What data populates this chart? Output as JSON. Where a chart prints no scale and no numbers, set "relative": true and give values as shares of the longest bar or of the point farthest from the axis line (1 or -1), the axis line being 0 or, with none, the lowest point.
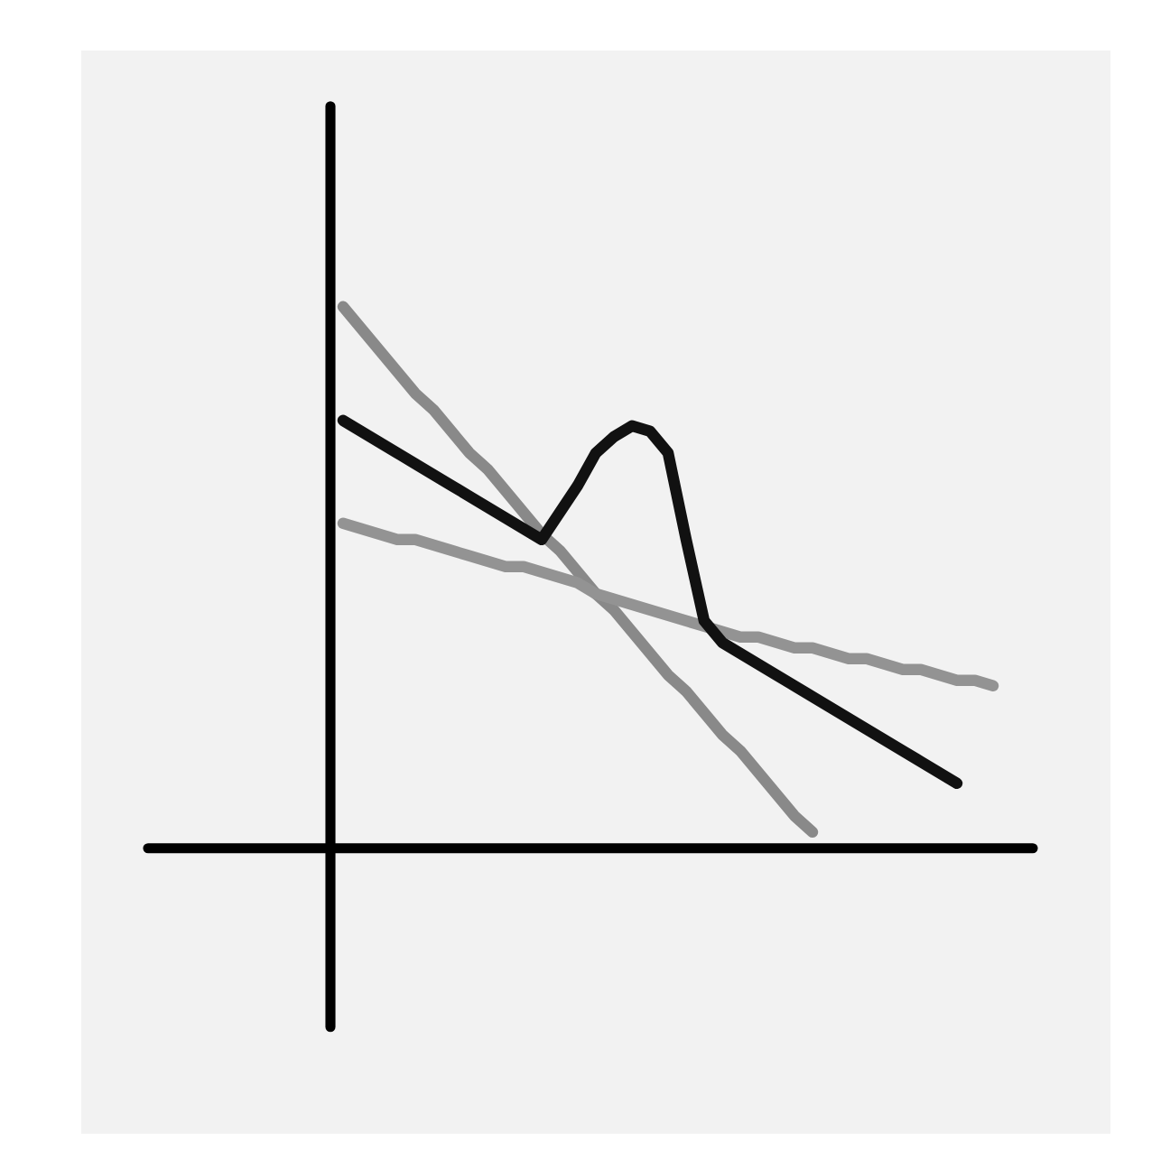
{
  "chart_data": {
    "type": "line",
    "relative": true,
    "categories": [
      null,
      null,
      null,
      null,
      null,
      null,
      null,
      null,
      null,
      null,
      null,
      null,
      null,
      null,
      null,
      null,
      null,
      null,
      null,
      null,
      null,
      null,
      null,
      null,
      null,
      null,
      null,
      null,
      null,
      null,
      null,
      null,
      null,
      null,
      null,
      null,
      null
    ],
    "series": [
      {
        "color": "#898989",
        "values": [
          1,
          0.96,
          0.92,
          0.88,
          0.84,
          0.81,
          0.77,
          0.73,
          0.7,
          0.66,
          0.62,
          0.58,
          0.55,
          0.51,
          0.47,
          0.44,
          0.4,
          0.36,
          0.32,
          0.29,
          0.25,
          0.21,
          0.18,
          0.14,
          0.1,
          0.06,
          0.03,
          null,
          null,
          null,
          null,
          null,
          null,
          null,
          null,
          null,
          null
        ]
      },
      {
        "color": "#939393",
        "values": [
          0.6,
          0.59,
          0.58,
          0.57,
          0.57,
          0.56,
          0.55,
          0.54,
          0.53,
          0.52,
          0.52,
          0.51,
          0.5,
          0.49,
          0.47,
          0.46,
          0.45,
          0.44,
          0.43,
          0.42,
          0.41,
          0.4,
          0.39,
          0.39,
          0.38,
          0.37,
          0.37,
          0.36,
          0.35,
          0.35,
          0.34,
          0.33,
          0.33,
          0.32,
          0.31,
          0.31,
          0.3
        ]
      },
      {
        "color": "#111111",
        "values": [
          0.79,
          0.77,
          0.75,
          0.73,
          0.71,
          0.69,
          0.67,
          0.65,
          0.63,
          0.61,
          0.59,
          0.57,
          0.62,
          0.67,
          0.73,
          0.76,
          0.78,
          0.77,
          0.73,
          0.57,
          0.42,
          0.38,
          0.36,
          0.34,
          0.32,
          0.3,
          0.28,
          0.26,
          0.24,
          0.22,
          0.2,
          0.18,
          0.16,
          0.14,
          0.12,
          null,
          null
        ]
      }
    ],
    "grid": false,
    "legend": false,
    "marker": "none",
    "line_style": "solid"
  }
}
